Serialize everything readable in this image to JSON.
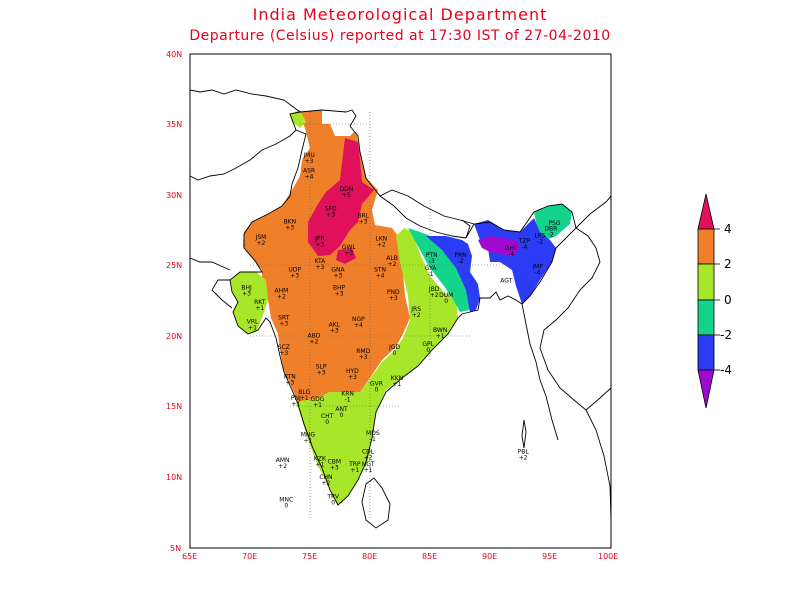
{
  "title": "India Meteorological Department",
  "subtitle": "Departure (Celsius) reported at 17:30 IST of 27-04-2010",
  "axes": {
    "lon_ticks": [
      "65E",
      "70E",
      "75E",
      "80E",
      "85E",
      "90E",
      "95E",
      "100E"
    ],
    "lat_ticks": [
      "5N",
      "10N",
      "15N",
      "20N",
      "25N",
      "30N",
      "35N",
      "40N"
    ]
  },
  "colorbar": {
    "labels": [
      "4",
      "2",
      "0",
      "-2",
      "-4"
    ],
    "colors": [
      "#e0105a",
      "#f07f2a",
      "#a8e62a",
      "#14d48c",
      "#2b3cf4",
      "#a00ad0"
    ]
  },
  "stations": [
    {
      "name": "JMU",
      "dep": "+3",
      "lon": 74.9,
      "lat": 32.7
    },
    {
      "name": "ASR",
      "dep": "+4",
      "lon": 74.9,
      "lat": 31.6
    },
    {
      "name": "DDN",
      "dep": "+5",
      "lon": 78.0,
      "lat": 30.3
    },
    {
      "name": "SFD",
      "dep": "+3",
      "lon": 76.7,
      "lat": 28.9
    },
    {
      "name": "BRL",
      "dep": "+3",
      "lon": 79.4,
      "lat": 28.4
    },
    {
      "name": "BKN",
      "dep": "+3",
      "lon": 73.3,
      "lat": 28.0
    },
    {
      "name": "JSM",
      "dep": "+2",
      "lon": 70.9,
      "lat": 26.9
    },
    {
      "name": "JPR",
      "dep": "+3",
      "lon": 75.8,
      "lat": 26.8
    },
    {
      "name": "GWL",
      "dep": "+3",
      "lon": 78.2,
      "lat": 26.2
    },
    {
      "name": "LKN",
      "dep": "+2",
      "lon": 80.9,
      "lat": 26.8
    },
    {
      "name": "KTA",
      "dep": "+3",
      "lon": 75.8,
      "lat": 25.2
    },
    {
      "name": "UDP",
      "dep": "+3",
      "lon": 73.7,
      "lat": 24.6
    },
    {
      "name": "GNA",
      "dep": "+3",
      "lon": 77.3,
      "lat": 24.6
    },
    {
      "name": "STN",
      "dep": "+4",
      "lon": 80.8,
      "lat": 24.6
    },
    {
      "name": "ALB",
      "dep": "+2",
      "lon": 81.8,
      "lat": 25.4
    },
    {
      "name": "PTN",
      "dep": "-3",
      "lon": 85.1,
      "lat": 25.6
    },
    {
      "name": "GYA",
      "dep": "-1",
      "lon": 85.0,
      "lat": 24.7
    },
    {
      "name": "PRN",
      "dep": "-2",
      "lon": 87.5,
      "lat": 25.6
    },
    {
      "name": "GHT",
      "dep": "-4",
      "lon": 91.7,
      "lat": 26.1
    },
    {
      "name": "TZP",
      "dep": "-4",
      "lon": 92.8,
      "lat": 26.6
    },
    {
      "name": "LKS",
      "dep": "-2",
      "lon": 94.1,
      "lat": 27.0
    },
    {
      "name": "DBR",
      "dep": "-2",
      "lon": 95.0,
      "lat": 27.5
    },
    {
      "name": "PSG",
      "dep": "",
      "lon": 95.3,
      "lat": 27.9
    },
    {
      "name": "IMP",
      "dep": "-4",
      "lon": 93.9,
      "lat": 24.8
    },
    {
      "name": "AGT",
      "dep": "",
      "lon": 91.3,
      "lat": 23.8
    },
    {
      "name": "BHJ",
      "dep": "+3",
      "lon": 69.7,
      "lat": 23.3
    },
    {
      "name": "AHM",
      "dep": "+2",
      "lon": 72.6,
      "lat": 23.1
    },
    {
      "name": "BHP",
      "dep": "+3",
      "lon": 77.4,
      "lat": 23.3
    },
    {
      "name": "PND",
      "dep": "+3",
      "lon": 81.9,
      "lat": 23.0
    },
    {
      "name": "JBD",
      "dep": "+2",
      "lon": 85.3,
      "lat": 23.2
    },
    {
      "name": "DUM",
      "dep": "0",
      "lon": 86.3,
      "lat": 22.8
    },
    {
      "name": "RKT",
      "dep": "+1",
      "lon": 70.8,
      "lat": 22.3
    },
    {
      "name": "SRT",
      "dep": "+3",
      "lon": 72.8,
      "lat": 21.2
    },
    {
      "name": "VRL",
      "dep": "+1",
      "lon": 70.2,
      "lat": 20.9
    },
    {
      "name": "AKL",
      "dep": "+3",
      "lon": 77.0,
      "lat": 20.7
    },
    {
      "name": "NGP",
      "dep": "+4",
      "lon": 79.0,
      "lat": 21.1
    },
    {
      "name": "JRS",
      "dep": "+2",
      "lon": 83.8,
      "lat": 21.8
    },
    {
      "name": "BWN",
      "dep": "+1",
      "lon": 85.8,
      "lat": 20.3
    },
    {
      "name": "ABD",
      "dep": "+2",
      "lon": 75.3,
      "lat": 19.9
    },
    {
      "name": "SCZ",
      "dep": "+3",
      "lon": 72.8,
      "lat": 19.1
    },
    {
      "name": "JGD",
      "dep": "0",
      "lon": 82.0,
      "lat": 19.1
    },
    {
      "name": "GPL",
      "dep": "0",
      "lon": 84.8,
      "lat": 19.3
    },
    {
      "name": "RMD",
      "dep": "+3",
      "lon": 79.4,
      "lat": 18.8
    },
    {
      "name": "SLP",
      "dep": "+3",
      "lon": 75.9,
      "lat": 17.7
    },
    {
      "name": "HYD",
      "dep": "+3",
      "lon": 78.5,
      "lat": 17.4
    },
    {
      "name": "KKN",
      "dep": "+1",
      "lon": 82.2,
      "lat": 16.9
    },
    {
      "name": "RTN",
      "dep": "+3",
      "lon": 73.3,
      "lat": 17.0
    },
    {
      "name": "GVR",
      "dep": "0",
      "lon": 80.5,
      "lat": 16.5
    },
    {
      "name": "BLG",
      "dep": "+1",
      "lon": 74.5,
      "lat": 15.9
    },
    {
      "name": "PNJ",
      "dep": "+1",
      "lon": 73.8,
      "lat": 15.5
    },
    {
      "name": "GDG",
      "dep": "+1",
      "lon": 75.6,
      "lat": 15.4
    },
    {
      "name": "KRN",
      "dep": "-1",
      "lon": 78.1,
      "lat": 15.8
    },
    {
      "name": "ANT",
      "dep": "0",
      "lon": 77.6,
      "lat": 14.7
    },
    {
      "name": "CHT",
      "dep": "0",
      "lon": 76.4,
      "lat": 14.2
    },
    {
      "name": "MNG",
      "dep": "+1",
      "lon": 74.8,
      "lat": 12.9
    },
    {
      "name": "MDS",
      "dep": "-1",
      "lon": 80.2,
      "lat": 13.0
    },
    {
      "name": "CDL",
      "dep": "+2",
      "lon": 79.8,
      "lat": 11.7
    },
    {
      "name": "KZK",
      "dep": "+1",
      "lon": 75.8,
      "lat": 11.2
    },
    {
      "name": "CBM",
      "dep": "+3",
      "lon": 77.0,
      "lat": 11.0
    },
    {
      "name": "TRP",
      "dep": "+1",
      "lon": 78.7,
      "lat": 10.8
    },
    {
      "name": "NGT",
      "dep": "+1",
      "lon": 79.8,
      "lat": 10.8
    },
    {
      "name": "AMN",
      "dep": "+2",
      "lon": 72.7,
      "lat": 11.1
    },
    {
      "name": "CHN",
      "dep": "+2",
      "lon": 76.3,
      "lat": 9.9
    },
    {
      "name": "TRV",
      "dep": "0",
      "lon": 76.9,
      "lat": 8.5
    },
    {
      "name": "MNC",
      "dep": "0",
      "lon": 73.0,
      "lat": 8.3
    },
    {
      "name": "PBL",
      "dep": "+2",
      "lon": 92.7,
      "lat": 11.7
    }
  ]
}
